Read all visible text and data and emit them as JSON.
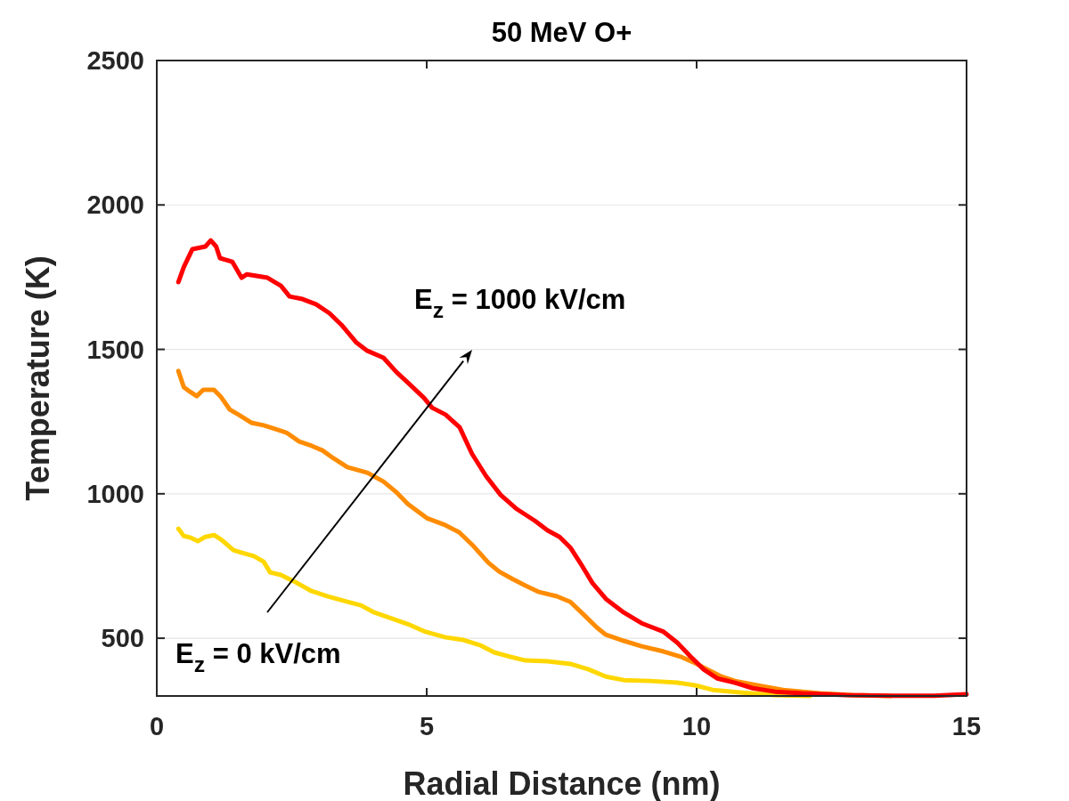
{
  "chart_data": {
    "type": "line",
    "title": "50 MeV O+",
    "xlabel": "Radial Distance (nm)",
    "ylabel": "Temperature (K)",
    "xlim": [
      0,
      15
    ],
    "xticks": [
      0,
      5,
      10,
      15
    ],
    "ylim": [
      300,
      2500
    ],
    "yticks": [
      500,
      1000,
      1500,
      2000,
      2500
    ],
    "grid": "y",
    "line_style": "solid",
    "marker": "none",
    "series": [
      {
        "color": "#ffd700",
        "x": [
          0.4,
          0.5,
          0.63,
          0.76,
          0.9,
          1.06,
          1.19,
          1.42,
          1.58,
          1.8,
          1.98,
          2.1,
          2.3,
          2.54,
          2.87,
          3.17,
          3.53,
          3.78,
          4.03,
          4.36,
          4.69,
          4.98,
          5.35,
          5.68,
          6.0,
          6.25,
          6.5,
          6.83,
          7.24,
          7.66,
          8.0,
          8.32,
          8.65,
          9.14,
          9.64,
          9.97,
          10.3,
          10.8,
          11.45,
          12.1
        ],
        "values": [
          879,
          854,
          848,
          836,
          851,
          857,
          842,
          805,
          796,
          784,
          765,
          728,
          719,
          697,
          663,
          645,
          626,
          614,
          589,
          568,
          546,
          522,
          503,
          494,
          475,
          451,
          438,
          423,
          420,
          411,
          392,
          367,
          355,
          352,
          346,
          337,
          321,
          312,
          303,
          300
        ]
      },
      {
        "color": "#ff8c00",
        "x": [
          0.4,
          0.5,
          0.61,
          0.74,
          0.86,
          1.06,
          1.19,
          1.35,
          1.52,
          1.75,
          1.98,
          2.2,
          2.4,
          2.64,
          2.87,
          3.07,
          3.28,
          3.53,
          3.9,
          4.2,
          4.44,
          4.65,
          5.0,
          5.35,
          5.6,
          5.84,
          6.14,
          6.34,
          6.58,
          6.83,
          7.08,
          7.41,
          7.66,
          7.9,
          8.15,
          8.32,
          8.65,
          8.98,
          9.39,
          9.72,
          9.97,
          10.2,
          10.46,
          10.71,
          11.12,
          11.6,
          12.28,
          12.9,
          13.6
        ],
        "values": [
          1425,
          1369,
          1354,
          1338,
          1360,
          1360,
          1335,
          1292,
          1273,
          1246,
          1237,
          1224,
          1212,
          1181,
          1166,
          1150,
          1122,
          1092,
          1073,
          1042,
          1005,
          965,
          916,
          891,
          867,
          824,
          762,
          731,
          706,
          682,
          660,
          645,
          626,
          583,
          537,
          512,
          491,
          472,
          454,
          435,
          414,
          392,
          367,
          352,
          337,
          321,
          309,
          303,
          300
        ]
      },
      {
        "color": "#ff0000",
        "x": [
          0.4,
          0.5,
          0.66,
          0.9,
          1.0,
          1.1,
          1.17,
          1.4,
          1.57,
          1.67,
          2.05,
          2.3,
          2.46,
          2.7,
          2.95,
          3.2,
          3.42,
          3.7,
          3.9,
          4.2,
          4.44,
          4.69,
          4.95,
          5.1,
          5.35,
          5.61,
          5.84,
          6.1,
          6.37,
          6.67,
          7.0,
          7.24,
          7.46,
          7.66,
          7.85,
          8.07,
          8.32,
          8.65,
          8.98,
          9.39,
          9.64,
          9.88,
          10.13,
          10.38,
          10.71,
          11.04,
          11.45,
          11.95,
          12.77,
          13.6,
          14.4,
          15.0
        ],
        "values": [
          1733,
          1785,
          1847,
          1856,
          1877,
          1856,
          1816,
          1803,
          1748,
          1760,
          1748,
          1720,
          1683,
          1674,
          1656,
          1625,
          1585,
          1523,
          1495,
          1471,
          1421,
          1378,
          1332,
          1298,
          1274,
          1230,
          1138,
          1061,
          996,
          947,
          907,
          873,
          851,
          814,
          759,
          691,
          636,
          589,
          552,
          522,
          485,
          438,
          392,
          361,
          346,
          327,
          315,
          309,
          303,
          301,
          301,
          306
        ]
      }
    ],
    "annotations": [
      "E$_{z}$ = 1000 kV/cm",
      "E$_{z}$ = 0 kV/cm"
    ]
  }
}
